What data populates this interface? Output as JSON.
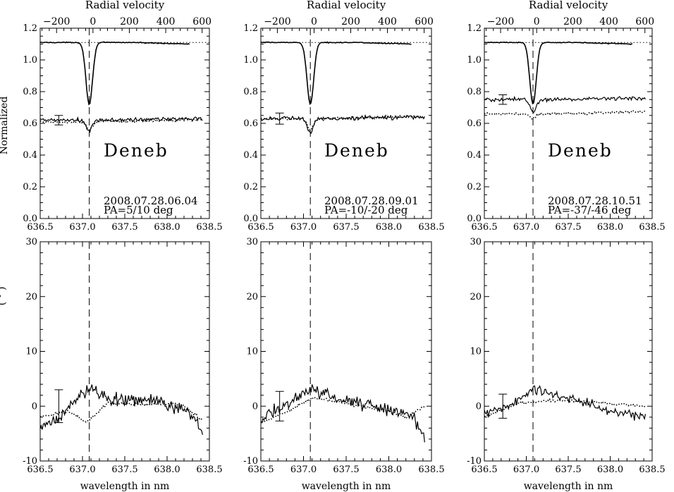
{
  "figure": {
    "left_ylabel": "Normalized",
    "left_ylabel_lower": "( ° )",
    "top_axis_label": "Radial velocity",
    "bottom_axis_label": "wavelength in nm",
    "vel_ticks": [
      "-200",
      "0",
      "200",
      "400",
      "600"
    ],
    "wave_ticks": [
      "636.5",
      "637.0",
      "637.5",
      "638.0",
      "638.5"
    ],
    "upper_y_ticks": [
      "0.0",
      "0.2",
      "0.4",
      "0.6",
      "0.8",
      "1.0",
      "1.2"
    ],
    "lower_y_ticks": [
      "-10",
      "0",
      "10",
      "20",
      "30"
    ]
  },
  "chart_data": [
    {
      "type": "line",
      "panel": "upper",
      "column": 0,
      "star_label": "Deneb",
      "date_label": "2008.07.28.06.04",
      "pa_label": "PA=5/10 deg",
      "xlabel": "",
      "ylabel": "Normalized",
      "xlim": [
        636.5,
        638.5
      ],
      "ylim": [
        0.0,
        1.2
      ],
      "top_axis": {
        "label": "Radial velocity",
        "xlim": [
          -290,
          640
        ]
      },
      "reference_lines": {
        "horizontal_dotted_y": 1.11,
        "vertical_dashed_x": 637.08
      },
      "error_bar": {
        "x": 636.72,
        "y": 0.62,
        "half_height": 0.03
      },
      "series": [
        {
          "style": "solid",
          "role": "intensity",
          "continuum": 1.11,
          "x_range": [
            636.5,
            638.27
          ],
          "line_center": 637.08,
          "depth": 0.39,
          "width": 0.055
        },
        {
          "style": "solid",
          "role": "polarized",
          "continuum": 0.62,
          "x_range": [
            636.5,
            638.42
          ],
          "line_center": 637.08,
          "depth": 0.07,
          "width": 0.05
        },
        {
          "style": "dotted",
          "role": "polarized",
          "continuum": 0.61,
          "x_range": [
            636.5,
            638.42
          ],
          "line_center": 637.08,
          "depth": 0.05,
          "width": 0.05
        }
      ]
    },
    {
      "type": "line",
      "panel": "upper",
      "column": 1,
      "star_label": "Deneb",
      "date_label": "2008.07.28.09.01",
      "pa_label": "PA=-10/-20 deg",
      "xlabel": "",
      "ylabel": "",
      "xlim": [
        636.5,
        638.5
      ],
      "ylim": [
        0.0,
        1.2
      ],
      "top_axis": {
        "label": "Radial velocity",
        "xlim": [
          -290,
          640
        ]
      },
      "reference_lines": {
        "horizontal_dotted_y": 1.11,
        "vertical_dashed_x": 637.08
      },
      "error_bar": {
        "x": 636.72,
        "y": 0.63,
        "half_height": 0.035
      },
      "series": [
        {
          "style": "solid",
          "role": "intensity",
          "continuum": 1.11,
          "x_range": [
            636.5,
            638.27
          ],
          "line_center": 637.08,
          "depth": 0.39,
          "width": 0.055
        },
        {
          "style": "solid",
          "role": "polarized",
          "continuum": 0.63,
          "x_range": [
            636.5,
            638.42
          ],
          "line_center": 637.08,
          "depth": 0.09,
          "width": 0.05
        },
        {
          "style": "dotted",
          "role": "polarized",
          "continuum": 0.63,
          "x_range": [
            636.5,
            638.42
          ],
          "line_center": 637.08,
          "depth": 0.07,
          "width": 0.05
        }
      ]
    },
    {
      "type": "line",
      "panel": "upper",
      "column": 2,
      "star_label": "Deneb",
      "date_label": "2008.07.28.10.51",
      "pa_label": "PA=-37/-46 deg",
      "xlabel": "",
      "ylabel": "",
      "xlim": [
        636.5,
        638.5
      ],
      "ylim": [
        0.0,
        1.2
      ],
      "top_axis": {
        "label": "Radial velocity",
        "xlim": [
          -290,
          640
        ]
      },
      "reference_lines": {
        "horizontal_dotted_y": 1.11,
        "vertical_dashed_x": 637.08
      },
      "error_bar": {
        "x": 636.72,
        "y": 0.75,
        "half_height": 0.03
      },
      "series": [
        {
          "style": "solid",
          "role": "intensity",
          "continuum": 1.11,
          "x_range": [
            636.5,
            638.27
          ],
          "line_center": 637.08,
          "depth": 0.39,
          "width": 0.055
        },
        {
          "style": "solid",
          "role": "polarized",
          "continuum": 0.75,
          "x_range": [
            636.5,
            638.42
          ],
          "line_center": 637.08,
          "depth": 0.08,
          "width": 0.05
        },
        {
          "style": "dotted",
          "role": "polarized",
          "continuum": 0.66,
          "x_range": [
            636.5,
            638.42
          ],
          "line_center": 637.08,
          "depth": 0.03,
          "width": 0.05
        }
      ]
    },
    {
      "type": "line",
      "panel": "lower",
      "column": 0,
      "xlabel": "wavelength in nm",
      "ylabel": "( ° )",
      "xlim": [
        636.5,
        638.5
      ],
      "ylim": [
        -10,
        30
      ],
      "reference_lines": {
        "vertical_dashed_x": 637.08
      },
      "error_bar": {
        "x": 636.72,
        "y": 0.0,
        "half_height": 3.0
      },
      "series": [
        {
          "style": "solid",
          "x_range": [
            636.5,
            638.42
          ],
          "noise": 1.8,
          "anchors": [
            [
              636.5,
              -4.5
            ],
            [
              636.8,
              -1.0
            ],
            [
              637.08,
              3.5
            ],
            [
              637.3,
              1.5
            ],
            [
              637.8,
              1.0
            ],
            [
              638.2,
              -0.5
            ],
            [
              638.42,
              -4.0
            ]
          ]
        },
        {
          "style": "dotted",
          "x_range": [
            636.5,
            638.42
          ],
          "noise": 0.4,
          "anchors": [
            [
              636.5,
              -1.8
            ],
            [
              636.85,
              -1.0
            ],
            [
              637.05,
              -3.0
            ],
            [
              637.3,
              0.5
            ],
            [
              637.8,
              0.3
            ],
            [
              638.15,
              0.5
            ],
            [
              638.42,
              -2.5
            ]
          ]
        }
      ]
    },
    {
      "type": "line",
      "panel": "lower",
      "column": 1,
      "xlabel": "wavelength in nm",
      "ylabel": "",
      "xlim": [
        636.5,
        638.5
      ],
      "ylim": [
        -10,
        30
      ],
      "reference_lines": {
        "vertical_dashed_x": 637.08
      },
      "error_bar": {
        "x": 636.72,
        "y": 0.0,
        "half_height": 2.7
      },
      "series": [
        {
          "style": "solid",
          "x_range": [
            636.5,
            638.42
          ],
          "noise": 1.7,
          "anchors": [
            [
              636.5,
              -2.5
            ],
            [
              636.8,
              0.5
            ],
            [
              637.08,
              3.0
            ],
            [
              637.5,
              1.0
            ],
            [
              638.0,
              -0.5
            ],
            [
              638.25,
              -1.5
            ],
            [
              638.42,
              -5.5
            ]
          ]
        },
        {
          "style": "dotted",
          "x_range": [
            636.5,
            638.42
          ],
          "noise": 0.4,
          "anchors": [
            [
              636.5,
              -3.0
            ],
            [
              636.8,
              -1.0
            ],
            [
              637.1,
              1.5
            ],
            [
              637.5,
              0.5
            ],
            [
              638.0,
              -1.0
            ],
            [
              638.2,
              -2.0
            ],
            [
              638.42,
              0.0
            ]
          ]
        }
      ]
    },
    {
      "type": "line",
      "panel": "lower",
      "column": 2,
      "xlabel": "wavelength in nm",
      "ylabel": "",
      "xlim": [
        636.5,
        638.5
      ],
      "ylim": [
        -10,
        30
      ],
      "reference_lines": {
        "vertical_dashed_x": 637.08
      },
      "error_bar": {
        "x": 636.72,
        "y": 0.0,
        "half_height": 2.2
      },
      "series": [
        {
          "style": "solid",
          "x_range": [
            636.5,
            638.42
          ],
          "noise": 1.4,
          "anchors": [
            [
              636.5,
              -1.5
            ],
            [
              636.8,
              0.0
            ],
            [
              637.08,
              3.0
            ],
            [
              637.5,
              1.5
            ],
            [
              637.9,
              -0.5
            ],
            [
              638.2,
              -1.5
            ],
            [
              638.42,
              -1.5
            ]
          ]
        },
        {
          "style": "dotted",
          "x_range": [
            636.5,
            638.42
          ],
          "noise": 0.3,
          "anchors": [
            [
              636.5,
              -2.0
            ],
            [
              636.9,
              0.5
            ],
            [
              637.3,
              1.0
            ],
            [
              637.6,
              1.0
            ],
            [
              638.0,
              0.5
            ],
            [
              638.42,
              0.0
            ]
          ]
        }
      ]
    }
  ]
}
